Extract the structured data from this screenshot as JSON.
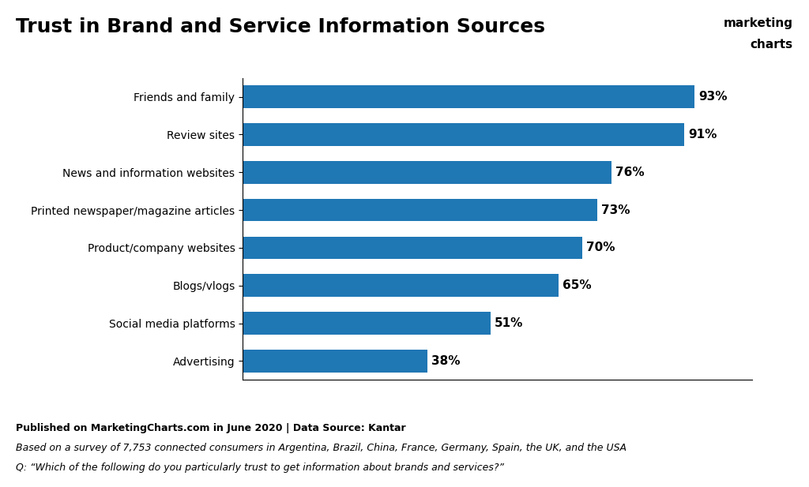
{
  "chart_data": {
    "type": "bar",
    "orientation": "horizontal",
    "title": "Trust in Brand and Service Information Sources",
    "categories": [
      "Friends and family",
      "Review sites",
      "News and information websites",
      "Printed newspaper/magazine articles",
      "Product/company websites",
      "Blogs/vlogs",
      "Social media platforms",
      "Advertising"
    ],
    "values": [
      93,
      91,
      76,
      73,
      70,
      65,
      51,
      38
    ],
    "value_labels": [
      "93%",
      "91%",
      "76%",
      "73%",
      "70%",
      "65%",
      "51%",
      "38%"
    ],
    "data_labels": true,
    "xlim": [
      0,
      105
    ],
    "tick_labels": "y",
    "grid": false,
    "annotations": [
      "Published on MarketingCharts.com in June 2020 | Data Source: Kantar",
      "Based on a survey of 7,753 connected consumers in Argentina, Brazil, China, France, Germany, Spain, the UK, and the USA",
      "Q: “Which of the following do you particularly trust to get information about brands and services?”",
      "marketing",
      "charts"
    ]
  }
}
